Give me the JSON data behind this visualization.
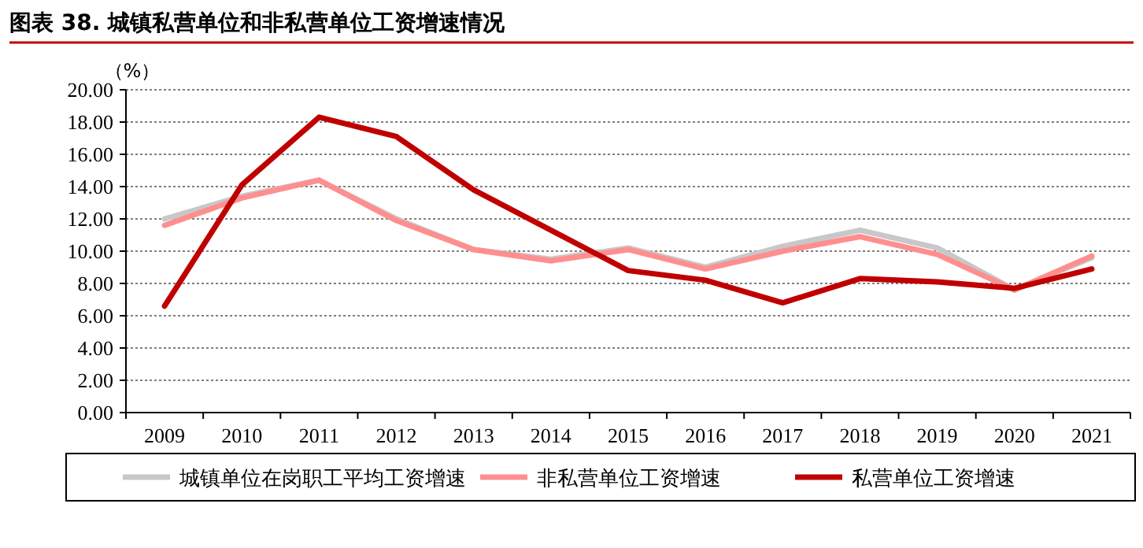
{
  "chart_data": {
    "type": "line",
    "title": "图表 38. 城镇私营单位和非私营单位工资增速情况",
    "ylabel": "（%）",
    "categories": [
      "2009",
      "2010",
      "2011",
      "2012",
      "2013",
      "2014",
      "2015",
      "2016",
      "2017",
      "2018",
      "2019",
      "2020",
      "2021"
    ],
    "series": [
      {
        "name": "城镇单位在岗职工平均工资增速",
        "color": "#c8c8c8",
        "values": [
          12.0,
          13.4,
          14.4,
          12.0,
          10.1,
          9.5,
          10.2,
          9.0,
          10.3,
          11.3,
          10.2,
          7.6,
          9.6
        ]
      },
      {
        "name": "非私营单位工资增速",
        "color": "#ff8f8f",
        "values": [
          11.6,
          13.3,
          14.4,
          11.9,
          10.1,
          9.4,
          10.1,
          8.9,
          10.0,
          10.9,
          9.8,
          7.6,
          9.7
        ]
      },
      {
        "name": "私营单位工资增速",
        "color": "#c00000",
        "values": [
          6.6,
          14.1,
          18.3,
          17.1,
          13.8,
          11.3,
          8.8,
          8.2,
          6.8,
          8.3,
          8.1,
          7.7,
          8.9
        ]
      }
    ],
    "ylim": [
      0,
      20
    ],
    "yticks": [
      {
        "value": 0,
        "label": "0.00"
      },
      {
        "value": 2,
        "label": "2.00"
      },
      {
        "value": 4,
        "label": "4.00"
      },
      {
        "value": 6,
        "label": "6.00"
      },
      {
        "value": 8,
        "label": "8.00"
      },
      {
        "value": 10,
        "label": "10.00"
      },
      {
        "value": 12,
        "label": "12.00"
      },
      {
        "value": 14,
        "label": "14.00"
      },
      {
        "value": 16,
        "label": "16.00"
      },
      {
        "value": 18,
        "label": "18.00"
      },
      {
        "value": 20,
        "label": "20.00"
      }
    ],
    "grid": "y",
    "legend": "bottom",
    "marker": "none",
    "line_style": "solid"
  }
}
